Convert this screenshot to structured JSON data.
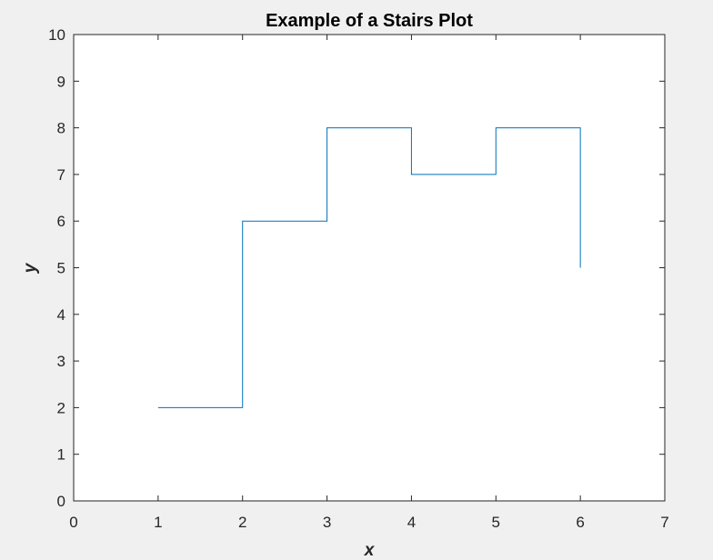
{
  "chart_data": {
    "type": "line",
    "style": "stairs",
    "title": "Example of a Stairs Plot",
    "xlabel": "x",
    "ylabel": "y",
    "xlim": [
      0,
      7
    ],
    "ylim": [
      0,
      10
    ],
    "xticks": [
      0,
      1,
      2,
      3,
      4,
      5,
      6,
      7
    ],
    "yticks": [
      0,
      1,
      2,
      3,
      4,
      5,
      6,
      7,
      8,
      9,
      10
    ],
    "grid": false,
    "series": [
      {
        "x": [
          1,
          2,
          3,
          4,
          5,
          6
        ],
        "y": [
          2,
          6,
          8,
          7,
          8,
          5
        ],
        "color": "#0072bd"
      }
    ]
  }
}
